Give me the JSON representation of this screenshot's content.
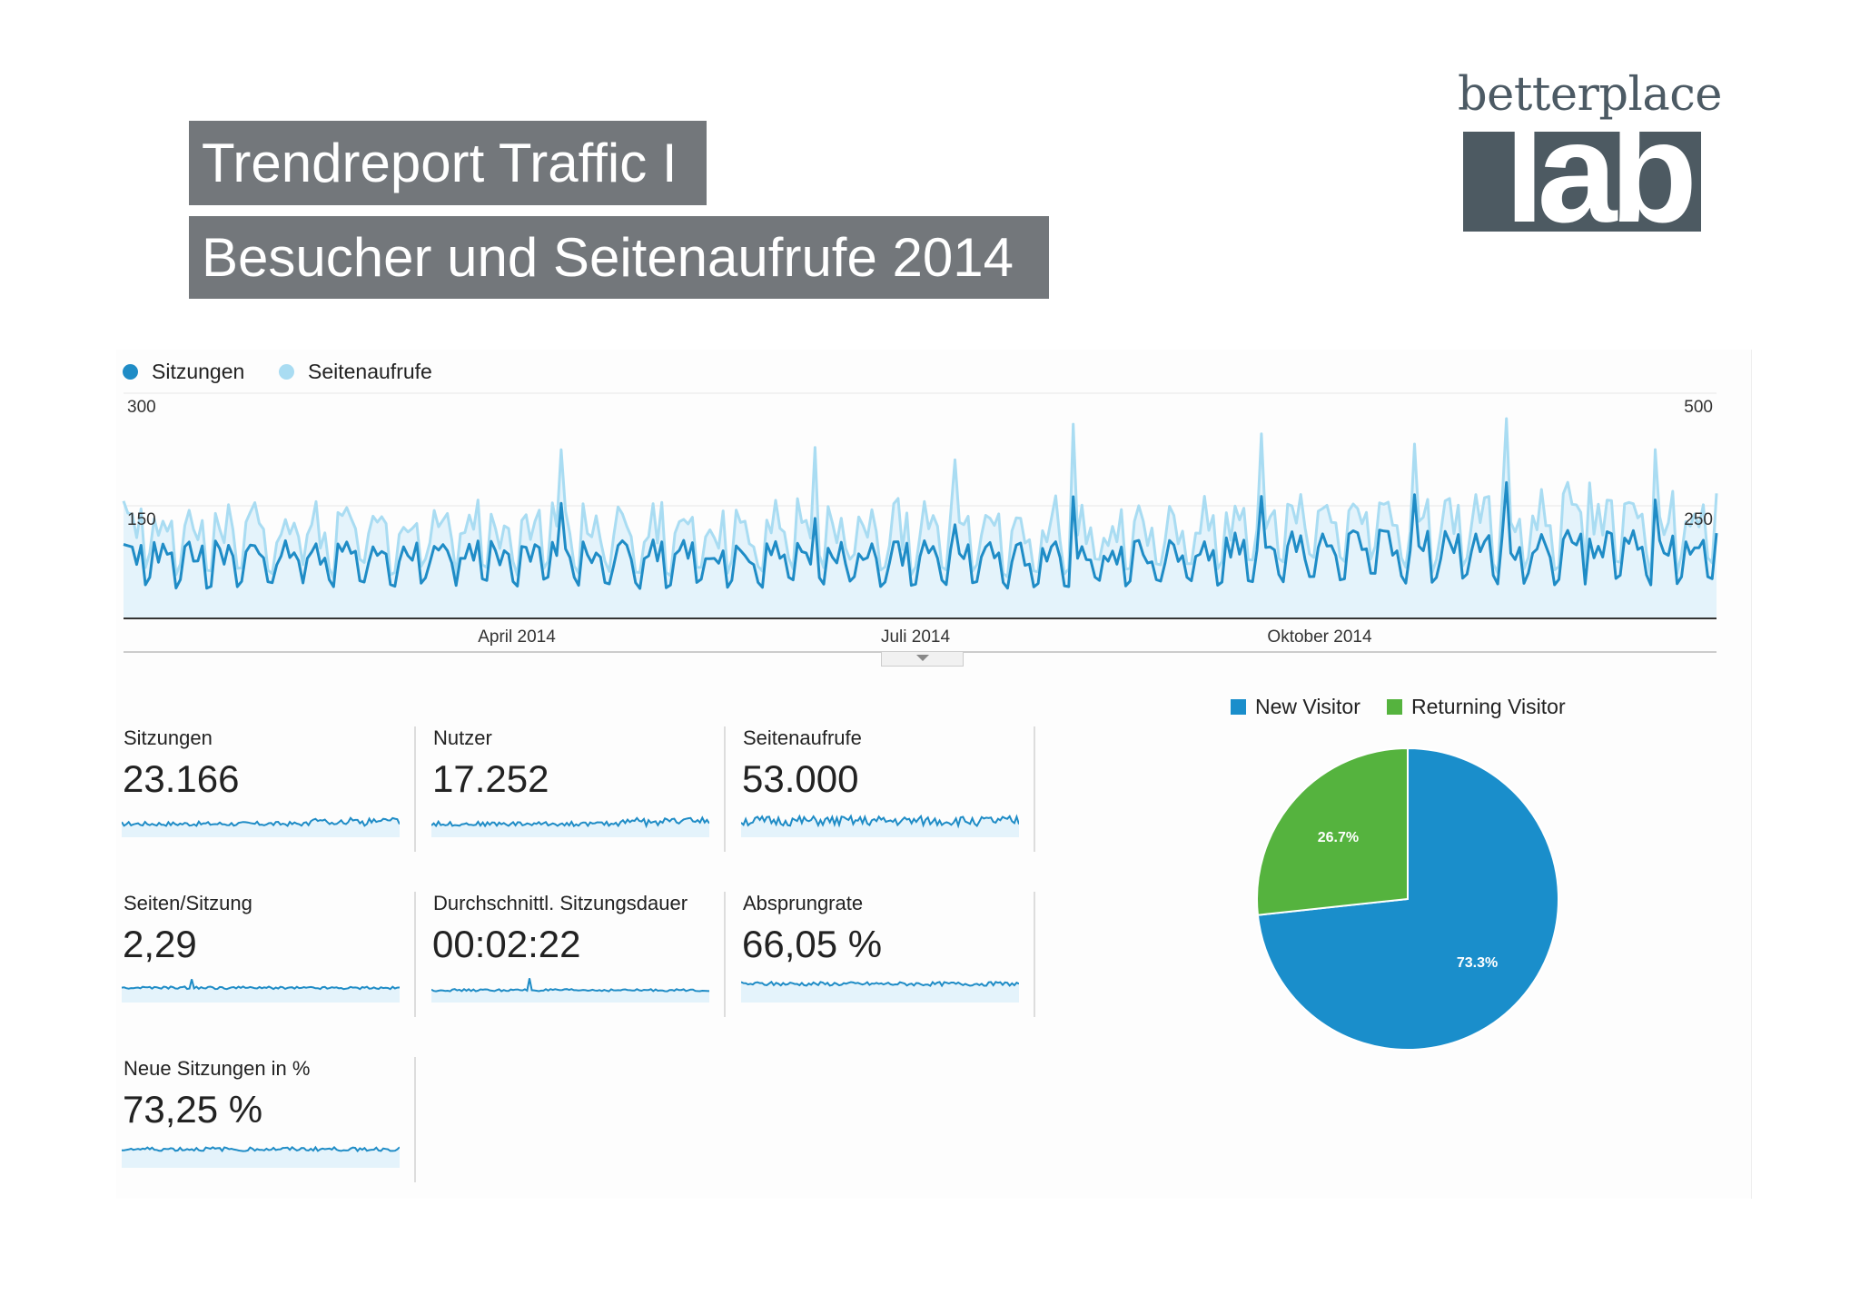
{
  "header": {
    "title_line1": "Trendreport Traffic I",
    "title_line2": "Besucher und Seitenaufrufe 2014"
  },
  "logo": {
    "word": "betterplace",
    "lab": "lab"
  },
  "colors": {
    "sessions": "#1f8cc6",
    "pageviews": "#a9dcf2",
    "area_fill": "#e4f3fb",
    "new_visitor": "#1a8ecb",
    "returning_visitor": "#55b33e",
    "title_bg": "#73777b"
  },
  "chart_data": [
    {
      "type": "line",
      "title": "",
      "series": [
        {
          "name": "Sitzungen",
          "axis": "left"
        },
        {
          "name": "Seitenaufrufe",
          "axis": "right"
        }
      ],
      "x_range": [
        "Januar 2014",
        "Dezember 2014"
      ],
      "x_tick_labels": [
        "April 2014",
        "Juli 2014",
        "Oktober 2014"
      ],
      "y_left_ticks": [
        "300",
        "150"
      ],
      "y_right_ticks": [
        "500",
        "250"
      ],
      "ylim_left": [
        0,
        300
      ],
      "ylim_right": [
        0,
        500
      ],
      "grid": true,
      "legend": "top-left"
    },
    {
      "type": "pie",
      "labels": [
        "New Visitor",
        "Returning Visitor"
      ],
      "values": [
        73.3,
        26.7
      ],
      "slice_labels": [
        "73.3%",
        "26.7%"
      ],
      "legend": "top"
    }
  ],
  "metrics": [
    {
      "label": "Sitzungen",
      "value": "23.166"
    },
    {
      "label": "Nutzer",
      "value": "17.252"
    },
    {
      "label": "Seitenaufrufe",
      "value": "53.000"
    },
    {
      "label": "Seiten/Sitzung",
      "value": "2,29"
    },
    {
      "label": "Durchschnittl. Sitzungsdauer",
      "value": "00:02:22"
    },
    {
      "label": "Absprungrate",
      "value": "66,05 %"
    },
    {
      "label": "Neue Sitzungen in %",
      "value": "73,25 %"
    }
  ]
}
